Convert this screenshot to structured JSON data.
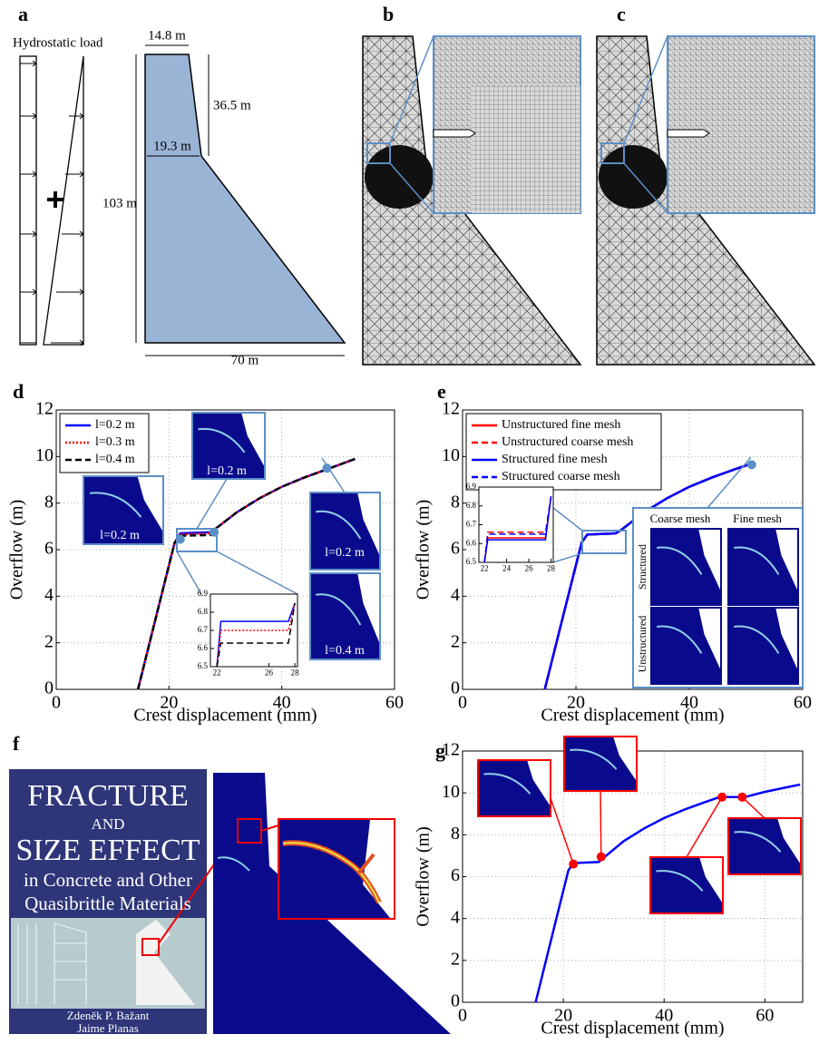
{
  "panel_labels": [
    "a",
    "b",
    "c",
    "d",
    "e",
    "f",
    "g"
  ],
  "panel_a": {
    "load_label": "Hydrostatic load",
    "dimensions": [
      "14.8 m",
      "36.5 m",
      "19.3 m",
      "103 m",
      "70 m"
    ]
  },
  "panel_f": {
    "cover_title": [
      "FRACTURE",
      "AND",
      "SIZE EFFECT"
    ],
    "cover_subtitle": [
      "in Concrete and Other",
      "Quasibrittle Materials"
    ],
    "authors": [
      "Zdeněk P. Bažant",
      "Jaime Planas"
    ]
  },
  "chart_data": [
    {
      "type": "line",
      "xlabel": "Crest displacement (mm)",
      "ylabel": "Overflow (m)",
      "xlim": [
        0,
        60
      ],
      "xticks": [
        0,
        20,
        40,
        60
      ],
      "ylim": [
        0,
        12
      ],
      "yticks": [
        0,
        2,
        4,
        6,
        8,
        10,
        12
      ],
      "grid": true,
      "legend": "upper left",
      "series": [
        {
          "name": "l=0.2 m",
          "color": "#0000ff",
          "style": "solid",
          "x": [
            14.5,
            18,
            21,
            22,
            27.5,
            28,
            32,
            36,
            40,
            44,
            48,
            53
          ],
          "values": [
            0,
            3.4,
            6.3,
            6.7,
            6.75,
            6.85,
            7.6,
            8.2,
            8.7,
            9.1,
            9.45,
            9.9
          ]
        },
        {
          "name": "l=0.3 m",
          "color": "#ff0000",
          "style": "dotted",
          "x": [
            14.5,
            18,
            21,
            22,
            27.5,
            28,
            32,
            36,
            40,
            44,
            48,
            53
          ],
          "values": [
            0,
            3.4,
            6.3,
            6.65,
            6.7,
            6.85,
            7.6,
            8.2,
            8.7,
            9.1,
            9.45,
            9.9
          ]
        },
        {
          "name": "l=0.4 m",
          "color": "#000000",
          "style": "dashed",
          "x": [
            14.5,
            18,
            21,
            22,
            27.5,
            28,
            32,
            36,
            40,
            44,
            48,
            53
          ],
          "values": [
            0,
            3.4,
            6.3,
            6.6,
            6.63,
            6.85,
            7.6,
            8.2,
            8.7,
            9.1,
            9.45,
            9.9
          ]
        }
      ],
      "markers": {
        "color": "#5b8fc6",
        "x": [
          22,
          28,
          48
        ],
        "values": [
          6.45,
          6.75,
          9.5
        ]
      },
      "annotations": [
        "l=0.2 m",
        "l=0.2 m",
        "l=0.2 m",
        "l=0.4 m"
      ],
      "inset": {
        "xlim": [
          21.5,
          28.2
        ],
        "xticks": [
          22,
          26,
          28
        ],
        "ylim": [
          6.5,
          6.9
        ],
        "yticks": [
          6.5,
          6.6,
          6.7,
          6.8,
          6.9
        ],
        "series": [
          {
            "color": "#0000ff",
            "style": "solid",
            "x": [
              22,
              22.3,
              27.5,
              28
            ],
            "values": [
              6.5,
              6.75,
              6.75,
              6.85
            ]
          },
          {
            "color": "#ff0000",
            "style": "dotted",
            "x": [
              22,
              22.3,
              27.5,
              28
            ],
            "values": [
              6.5,
              6.7,
              6.7,
              6.85
            ]
          },
          {
            "color": "#000000",
            "style": "dashed",
            "x": [
              22,
              22.3,
              27.5,
              28
            ],
            "values": [
              6.5,
              6.63,
              6.63,
              6.85
            ]
          }
        ]
      }
    },
    {
      "type": "line",
      "xlabel": "Crest displacement (mm)",
      "ylabel": "Overflow (m)",
      "xlim": [
        0,
        60
      ],
      "xticks": [
        0,
        20,
        40,
        60
      ],
      "ylim": [
        0,
        12
      ],
      "yticks": [
        0,
        2,
        4,
        6,
        8,
        10,
        12
      ],
      "grid": true,
      "legend": "upper left",
      "series": [
        {
          "name": "Unstructured fine mesh",
          "color": "#ff0000",
          "style": "solid",
          "x": [
            14.5,
            18,
            21,
            22,
            27,
            28,
            32,
            36,
            40,
            44,
            48,
            51
          ],
          "values": [
            0,
            3.4,
            6.3,
            6.65,
            6.7,
            6.85,
            7.6,
            8.2,
            8.7,
            9.1,
            9.45,
            9.7
          ]
        },
        {
          "name": "Unstructured coarse mesh",
          "color": "#ff0000",
          "style": "dashed",
          "x": [
            14.5,
            18,
            21,
            22,
            27,
            28,
            32,
            36,
            40,
            44,
            48,
            51
          ],
          "values": [
            0,
            3.4,
            6.3,
            6.65,
            6.7,
            6.85,
            7.6,
            8.2,
            8.7,
            9.1,
            9.45,
            9.7
          ]
        },
        {
          "name": "Structured fine mesh",
          "color": "#0000ff",
          "style": "solid",
          "x": [
            14.5,
            18,
            21,
            22,
            27,
            28,
            32,
            36,
            40,
            44,
            48,
            51
          ],
          "values": [
            0,
            3.4,
            6.3,
            6.65,
            6.7,
            6.85,
            7.6,
            8.2,
            8.7,
            9.1,
            9.45,
            9.7
          ]
        },
        {
          "name": "Structured coarse mesh",
          "color": "#0000ff",
          "style": "dashed",
          "x": [
            14.5,
            18,
            21,
            22,
            27,
            28,
            32,
            36,
            40,
            44,
            48,
            51
          ],
          "values": [
            0,
            3.4,
            6.3,
            6.65,
            6.7,
            6.85,
            7.6,
            8.2,
            8.7,
            9.1,
            9.45,
            9.7
          ]
        }
      ],
      "markers": {
        "color": "#5b8fc6",
        "x": [
          51
        ],
        "values": [
          9.65
        ]
      },
      "annotations": [
        "Coarse mesh",
        "Fine mesh",
        "Structured",
        "Unstructured"
      ],
      "inset": {
        "xlim": [
          21.5,
          28.2
        ],
        "xticks": [
          22,
          24,
          26,
          28
        ],
        "ylim": [
          6.5,
          6.9
        ],
        "yticks": [
          6.5,
          6.6,
          6.7,
          6.8,
          6.9
        ],
        "series": [
          {
            "color": "#ff0000",
            "style": "solid",
            "x": [
              22,
              22.3,
              27.5,
              28
            ],
            "values": [
              6.5,
              6.63,
              6.63,
              6.85
            ]
          },
          {
            "color": "#ff0000",
            "style": "dashed",
            "x": [
              22,
              22.3,
              27.5,
              28
            ],
            "values": [
              6.5,
              6.66,
              6.66,
              6.85
            ]
          },
          {
            "color": "#0000ff",
            "style": "solid",
            "x": [
              22,
              22.3,
              27.5,
              28
            ],
            "values": [
              6.5,
              6.62,
              6.62,
              6.85
            ]
          },
          {
            "color": "#0000ff",
            "style": "dashed",
            "x": [
              22,
              22.3,
              27.5,
              28
            ],
            "values": [
              6.5,
              6.65,
              6.65,
              6.85
            ]
          }
        ]
      }
    },
    {
      "type": "line",
      "xlabel": "Crest displacement (mm)",
      "ylabel": "Overflow (m)",
      "xlim": [
        0,
        67.5
      ],
      "xticks": [
        0,
        20,
        40,
        60
      ],
      "ylim": [
        0,
        12
      ],
      "yticks": [
        0,
        2,
        4,
        6,
        8,
        10,
        12
      ],
      "grid": true,
      "series": [
        {
          "color": "#0000ff",
          "style": "solid",
          "x": [
            14.5,
            18,
            21,
            22,
            27,
            28,
            32,
            36,
            40,
            44,
            48,
            51,
            56,
            60,
            64,
            67
          ],
          "values": [
            0,
            3.4,
            6.3,
            6.65,
            6.7,
            6.9,
            7.7,
            8.3,
            8.8,
            9.2,
            9.55,
            9.8,
            9.8,
            10.05,
            10.25,
            10.4
          ]
        }
      ],
      "markers": {
        "color": "#ff0000",
        "x": [
          22,
          27.5,
          51.5,
          55.5
        ],
        "values": [
          6.6,
          6.95,
          9.8,
          9.8
        ]
      }
    }
  ]
}
